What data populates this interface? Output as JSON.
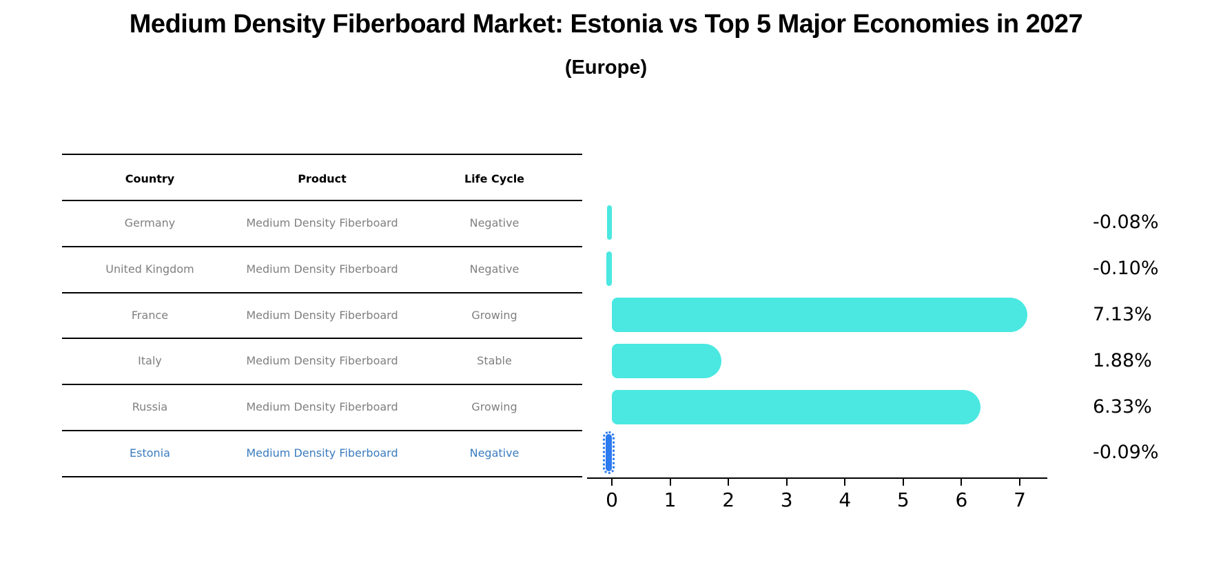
{
  "title": "Medium Density Fiberboard Market: Estonia vs Top 5 Major Economies in 2027",
  "subtitle": "(Europe)",
  "table": {
    "headers": [
      "Country",
      "Product",
      "Life Cycle"
    ],
    "rows": [
      {
        "country": "Germany",
        "product": "Medium Density Fiberboard",
        "life_cycle": "Negative",
        "highlight": false
      },
      {
        "country": "United Kingdom",
        "product": "Medium Density Fiberboard",
        "life_cycle": "Negative",
        "highlight": false
      },
      {
        "country": "France",
        "product": "Medium Density Fiberboard",
        "life_cycle": "Growing",
        "highlight": false
      },
      {
        "country": "Italy",
        "product": "Medium Density Fiberboard",
        "life_cycle": "Stable",
        "highlight": false
      },
      {
        "country": "Russia",
        "product": "Medium Density Fiberboard",
        "life_cycle": "Growing",
        "highlight": false
      },
      {
        "country": "Estonia",
        "product": "Medium Density Fiberboard",
        "life_cycle": "Negative",
        "highlight": true
      }
    ]
  },
  "chart_data": {
    "type": "bar",
    "orientation": "horizontal",
    "categories": [
      "Germany",
      "United Kingdom",
      "France",
      "Italy",
      "Russia",
      "Estonia"
    ],
    "values": [
      -0.08,
      -0.1,
      7.13,
      1.88,
      6.33,
      -0.09
    ],
    "value_labels": [
      "-0.08%",
      "-0.10%",
      "7.13%",
      "1.88%",
      "6.33%",
      "-0.09%"
    ],
    "highlight_index": 5,
    "xticks": [
      "0",
      "1",
      "2",
      "3",
      "4",
      "5",
      "6",
      "7"
    ],
    "xlim": [
      -0.43,
      7.47
    ],
    "grid": false,
    "legend": false,
    "bar_color": "#4ae8e1",
    "highlight_color": "#2b7af0",
    "highlight_text_color": "#3a7cbe"
  }
}
